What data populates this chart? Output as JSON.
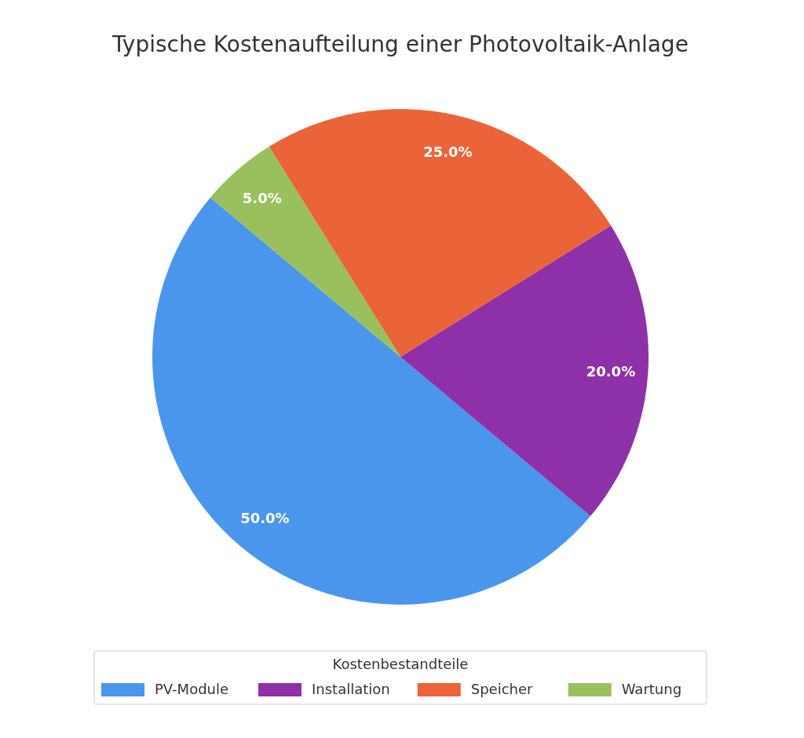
{
  "chart_data": {
    "type": "pie",
    "title": "Typische Kostenaufteilung einer Photovoltaik-Anlage",
    "categories": [
      "PV-Module",
      "Installation",
      "Speicher",
      "Wartung"
    ],
    "values": [
      50,
      20,
      25,
      5
    ],
    "value_labels": [
      "50.0%",
      "20.0%",
      "25.0%",
      "5.0%"
    ],
    "colors": [
      "#4a96ec",
      "#8e30a8",
      "#eb6338",
      "#99c05c"
    ],
    "legend_title": "Kostenbestandteile",
    "legend": "bottom"
  }
}
